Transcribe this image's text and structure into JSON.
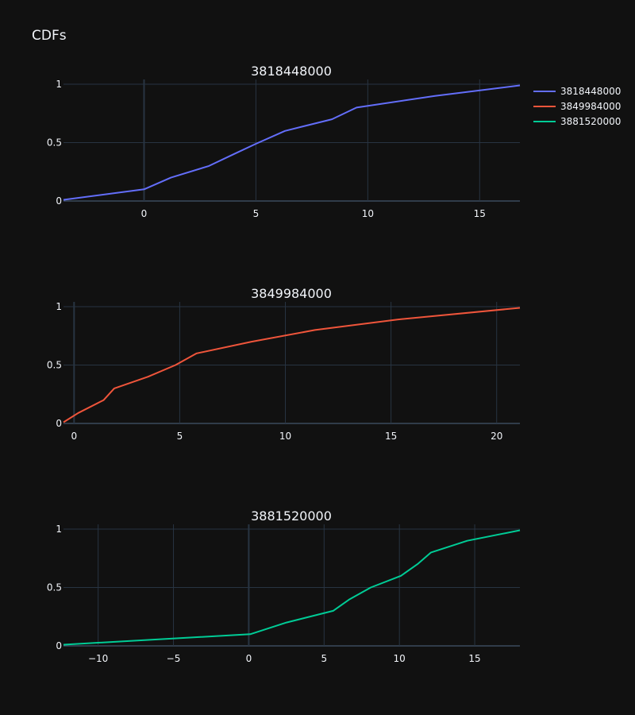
{
  "figure": {
    "title": "CDFs",
    "background": "#111111",
    "text_color": "#f2f5fa",
    "grid_color": "#283442"
  },
  "legend": {
    "placement": "top-right",
    "items": [
      {
        "label": "3818448000",
        "color": "#636efa"
      },
      {
        "label": "3849984000",
        "color": "#EF553B"
      },
      {
        "label": "3881520000",
        "color": "#00cc96"
      }
    ]
  },
  "chart_data": [
    {
      "type": "line",
      "title": "3818448000",
      "xlabel": "",
      "ylabel": "",
      "xlim": [
        -3.6,
        16.8
      ],
      "ylim": [
        0,
        1.04
      ],
      "xticks": [
        0,
        5,
        10,
        15
      ],
      "xtick_labels": [
        "0",
        "5",
        "10",
        "15"
      ],
      "yticks": [
        0,
        0.5,
        1
      ],
      "ytick_labels": [
        "0",
        "0.5",
        "1"
      ],
      "grid": true,
      "series": [
        {
          "name": "3818448000",
          "color": "#636efa",
          "x": [
            -3.6,
            0,
            1.2,
            2.9,
            4.0,
            5.0,
            6.3,
            8.4,
            9.5,
            13.0,
            16.8
          ],
          "y": [
            0.01,
            0.1,
            0.2,
            0.3,
            0.4,
            0.49,
            0.6,
            0.7,
            0.8,
            0.9,
            0.99
          ]
        }
      ]
    },
    {
      "type": "line",
      "title": "3849984000",
      "xlabel": "",
      "ylabel": "",
      "xlim": [
        -0.5,
        21.1
      ],
      "ylim": [
        0,
        1.04
      ],
      "xticks": [
        0,
        5,
        10,
        15,
        20
      ],
      "xtick_labels": [
        "0",
        "5",
        "10",
        "15",
        "20"
      ],
      "yticks": [
        0,
        0.5,
        1
      ],
      "ytick_labels": [
        "0",
        "0.5",
        "1"
      ],
      "grid": true,
      "series": [
        {
          "name": "3849984000",
          "color": "#EF553B",
          "x": [
            -0.5,
            0.2,
            1.4,
            1.9,
            3.5,
            4.8,
            5.8,
            8.4,
            11.4,
            15.3,
            21.1
          ],
          "y": [
            0.01,
            0.09,
            0.2,
            0.3,
            0.4,
            0.5,
            0.6,
            0.7,
            0.8,
            0.89,
            0.99
          ]
        }
      ]
    },
    {
      "type": "line",
      "title": "3881520000",
      "xlabel": "",
      "ylabel": "",
      "xlim": [
        -12.3,
        18.0
      ],
      "ylim": [
        0,
        1.04
      ],
      "xticks": [
        -10,
        -5,
        0,
        5,
        10,
        15
      ],
      "xtick_labels": [
        "−10",
        "−5",
        "0",
        "5",
        "10",
        "15"
      ],
      "yticks": [
        0,
        0.5,
        1
      ],
      "ytick_labels": [
        "0",
        "0.5",
        "1"
      ],
      "grid": true,
      "series": [
        {
          "name": "3881520000",
          "color": "#00cc96",
          "x": [
            -12.3,
            0.1,
            2.5,
            5.6,
            6.7,
            8.1,
            10.1,
            11.2,
            12.1,
            14.5,
            18.0
          ],
          "y": [
            0.01,
            0.1,
            0.2,
            0.3,
            0.4,
            0.5,
            0.6,
            0.7,
            0.8,
            0.9,
            0.99
          ]
        }
      ]
    }
  ]
}
